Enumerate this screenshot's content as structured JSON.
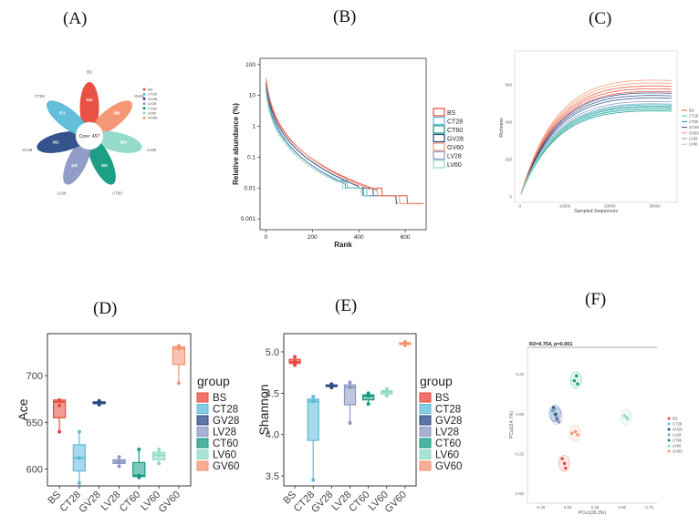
{
  "panel_labels": [
    "(A)",
    "(B)",
    "(C)",
    "(D)",
    "(E)",
    "(F)"
  ],
  "colors": {
    "BS": "#e8483b",
    "CT28": "#5bbbd9",
    "GV28": "#2a4a86",
    "LV28": "#8b97c4",
    "CT60": "#119a7f",
    "LV60": "#8fd9c8",
    "GV60": "#f3916f"
  },
  "chart_data": [
    {
      "panel": "A",
      "type": "flower",
      "center_label": "Core: 457",
      "petals": [
        {
          "group": "BS",
          "value": 524,
          "color": "#e8483b"
        },
        {
          "group": "GV60",
          "value": 396,
          "color": "#f3916f"
        },
        {
          "group": "LV60",
          "value": 864,
          "color": "#8fd9c8"
        },
        {
          "group": "CT60",
          "value": 392,
          "color": "#119a7f"
        },
        {
          "group": "LV28",
          "value": 420,
          "color": "#8b97c4"
        },
        {
          "group": "GV28",
          "value": 341,
          "color": "#2a4a86"
        },
        {
          "group": "CT28",
          "value": 371,
          "color": "#5bbbd9"
        }
      ],
      "legend": [
        "BS",
        "CT28",
        "GV28",
        "LV28",
        "CT60",
        "LV60",
        "GV60"
      ]
    },
    {
      "panel": "B",
      "type": "line",
      "title": "",
      "xlabel": "Rank",
      "ylabel": "Relative abundance (%)",
      "xlim": [
        -25,
        690
      ],
      "ylim_log10": [
        -3.35,
        2.2
      ],
      "xticks": [
        0,
        200,
        400,
        600
      ],
      "xtick_labels": [
        "0",
        "200",
        "400",
        "600"
      ],
      "yticks": [
        100,
        10,
        1,
        0.1,
        0.01,
        0.001
      ],
      "ytick_labels": [
        "100",
        "10",
        "1",
        "0.1",
        "0.01",
        "0.001"
      ],
      "legend": [
        "BS",
        "CT28",
        "CT60",
        "GV28",
        "GV60",
        "LV28",
        "LV60"
      ],
      "series": [
        {
          "name": "BS",
          "color": "#e8483b",
          "max_rank": 680,
          "start": 30,
          "end": 0.003
        },
        {
          "name": "CT28",
          "color": "#5bbbd9",
          "max_rank": 470,
          "start": 15,
          "end": 0.006
        },
        {
          "name": "CT60",
          "color": "#119a7f",
          "max_rank": 455,
          "start": 18,
          "end": 0.006
        },
        {
          "name": "GV28",
          "color": "#2a4a86",
          "max_rank": 570,
          "start": 25,
          "end": 0.004
        },
        {
          "name": "GV60",
          "color": "#f3916f",
          "max_rank": 640,
          "start": 40,
          "end": 0.003
        },
        {
          "name": "LV28",
          "color": "#8b97c4",
          "max_rank": 480,
          "start": 20,
          "end": 0.005
        },
        {
          "name": "LV60",
          "color": "#8fd9c8",
          "max_rank": 445,
          "start": 12,
          "end": 0.006
        }
      ]
    },
    {
      "panel": "C",
      "type": "line",
      "xlabel": "Sampled Sequences",
      "ylabel": "Richness",
      "xlim": [
        -1200,
        35000
      ],
      "ylim": [
        -30,
        780
      ],
      "xticks": [
        0,
        10000,
        20000,
        30000
      ],
      "xtick_labels": [
        "0",
        "10000",
        "20000",
        "30000"
      ],
      "yticks": [
        0,
        200,
        400,
        600
      ],
      "ytick_labels": [
        "0",
        "200",
        "400",
        "600"
      ],
      "legend": [
        "BS",
        "CT28",
        "CT60",
        "GV28",
        "GV60",
        "LV28",
        "LV60"
      ],
      "series": [
        {
          "name": "BS",
          "color": "#e8483b",
          "final": 650,
          "max_x": 34000
        },
        {
          "name": "CT28",
          "color": "#5bbbd9",
          "final": 540,
          "max_x": 34000
        },
        {
          "name": "CT60",
          "color": "#119a7f",
          "final": 530,
          "max_x": 34000
        },
        {
          "name": "GV28",
          "color": "#2a4a86",
          "final": 610,
          "max_x": 34000
        },
        {
          "name": "GV60",
          "color": "#f3916f",
          "final": 685,
          "max_x": 34000
        },
        {
          "name": "LV28",
          "color": "#8b97c4",
          "final": 560,
          "max_x": 34000
        },
        {
          "name": "LV60",
          "color": "#8fd9c8",
          "final": 545,
          "max_x": 34000
        }
      ]
    },
    {
      "panel": "D",
      "type": "box",
      "ylabel": "Ace",
      "ylim": [
        582,
        745
      ],
      "yticks": [
        600,
        650,
        700
      ],
      "ytick_labels": [
        "600",
        "650",
        "700"
      ],
      "legend_title": "group",
      "categories": [
        "BS",
        "CT28",
        "GV28",
        "LV28",
        "CT60",
        "LV60",
        "GV60"
      ],
      "boxes": [
        {
          "group": "BS",
          "min": 640,
          "q1": 655,
          "median": 672,
          "q3": 674,
          "max": 675,
          "points": [
            640,
            668,
            674
          ]
        },
        {
          "group": "CT28",
          "min": 585,
          "q1": 598,
          "median": 612,
          "q3": 626,
          "max": 640,
          "points": [
            585,
            612,
            640
          ]
        },
        {
          "group": "GV28",
          "min": 669,
          "q1": 670,
          "median": 671,
          "q3": 672,
          "max": 673,
          "points": [
            669,
            671,
            673
          ]
        },
        {
          "group": "LV28",
          "min": 603,
          "q1": 606,
          "median": 608,
          "q3": 610,
          "max": 613,
          "points": [
            603,
            608,
            613
          ]
        },
        {
          "group": "CT60",
          "min": 591,
          "q1": 592,
          "median": 593,
          "q3": 607,
          "max": 621,
          "points": [
            591,
            593,
            621
          ]
        },
        {
          "group": "LV60",
          "min": 606,
          "q1": 610,
          "median": 615,
          "q3": 618,
          "max": 621,
          "points": [
            606,
            615,
            621
          ]
        },
        {
          "group": "GV60",
          "min": 692,
          "q1": 712,
          "median": 729,
          "q3": 731,
          "max": 732,
          "points": [
            692,
            729,
            732
          ]
        }
      ]
    },
    {
      "panel": "E",
      "type": "box",
      "ylabel": "Shannon",
      "ylim": [
        3.38,
        5.22
      ],
      "yticks": [
        3.5,
        4.0,
        4.5,
        5.0
      ],
      "ytick_labels": [
        "3.5",
        "4.0",
        "4.5",
        "5.0"
      ],
      "legend_title": "group",
      "categories": [
        "BS",
        "CT28",
        "GV28",
        "LV28",
        "CT60",
        "LV60",
        "GV60"
      ],
      "boxes": [
        {
          "group": "BS",
          "min": 4.84,
          "q1": 4.86,
          "median": 4.88,
          "q3": 4.91,
          "max": 4.94,
          "points": [
            4.84,
            4.88,
            4.94
          ]
        },
        {
          "group": "CT28",
          "min": 3.45,
          "q1": 3.93,
          "median": 4.4,
          "q3": 4.43,
          "max": 4.46,
          "points": [
            3.45,
            4.4,
            4.46
          ]
        },
        {
          "group": "GV28",
          "min": 4.57,
          "q1": 4.58,
          "median": 4.59,
          "q3": 4.6,
          "max": 4.61,
          "points": [
            4.57,
            4.59,
            4.61
          ]
        },
        {
          "group": "LV28",
          "min": 4.14,
          "q1": 4.36,
          "median": 4.57,
          "q3": 4.6,
          "max": 4.63,
          "points": [
            4.14,
            4.57,
            4.63
          ]
        },
        {
          "group": "CT60",
          "min": 4.37,
          "q1": 4.42,
          "median": 4.47,
          "q3": 4.48,
          "max": 4.5,
          "points": [
            4.37,
            4.47,
            4.5
          ]
        },
        {
          "group": "LV60",
          "min": 4.47,
          "q1": 4.49,
          "median": 4.52,
          "q3": 4.53,
          "max": 4.55,
          "points": [
            4.47,
            4.52,
            4.55
          ]
        },
        {
          "group": "GV60",
          "min": 5.08,
          "q1": 5.09,
          "median": 5.1,
          "q3": 5.11,
          "max": 5.12,
          "points": [
            5.08,
            5.1,
            5.12
          ]
        }
      ]
    },
    {
      "panel": "F",
      "type": "scatter",
      "title": "R2=0.754, p=0.001",
      "xlabel": "PCo1(26.3%)",
      "ylabel": "PCo2(14.7%)",
      "xlim": [
        -0.37,
        0.82
      ],
      "ylim": [
        -0.56,
        0.42
      ],
      "xticks": [
        -0.25,
        0,
        0.25,
        0.5,
        0.75
      ],
      "xtick_labels": [
        "-0.25",
        "0.00",
        "0.25",
        "0.50",
        "0.75"
      ],
      "yticks": [
        0.25,
        0,
        -0.25,
        -0.5
      ],
      "ytick_labels": [
        "0.25",
        "0.00",
        "-0.25",
        "-0.50"
      ],
      "legend": [
        "BS",
        "CT28",
        "GV28",
        "LV28",
        "CT60",
        "LV60",
        "GV60"
      ],
      "series": [
        {
          "name": "BS",
          "color": "#e8483b",
          "x": [
            -0.05,
            -0.03,
            -0.02
          ],
          "y": [
            -0.28,
            -0.31,
            -0.34
          ]
        },
        {
          "name": "CT28",
          "color": "#5bbbd9",
          "x": [
            -0.14,
            -0.12,
            -0.11
          ],
          "y": [
            0.02,
            0.0,
            -0.01
          ]
        },
        {
          "name": "GV28",
          "color": "#2a4a86",
          "x": [
            -0.13,
            -0.11,
            -0.1
          ],
          "y": [
            0.04,
            0.0,
            -0.03
          ]
        },
        {
          "name": "LV28",
          "color": "#8b97c4",
          "x": [
            -0.12,
            -0.1,
            -0.08
          ],
          "y": [
            0.03,
            -0.02,
            -0.05
          ]
        },
        {
          "name": "CT60",
          "color": "#119a7f",
          "x": [
            0.06,
            0.08,
            0.09
          ],
          "y": [
            0.21,
            0.24,
            0.19
          ]
        },
        {
          "name": "LV60",
          "color": "#8fd9c8",
          "x": [
            0.52,
            0.54,
            0.55
          ],
          "y": [
            -0.01,
            -0.02,
            -0.03
          ]
        },
        {
          "name": "GV60",
          "color": "#f3916f",
          "x": [
            0.04,
            0.07,
            0.09
          ],
          "y": [
            -0.12,
            -0.11,
            -0.13
          ]
        }
      ]
    }
  ]
}
